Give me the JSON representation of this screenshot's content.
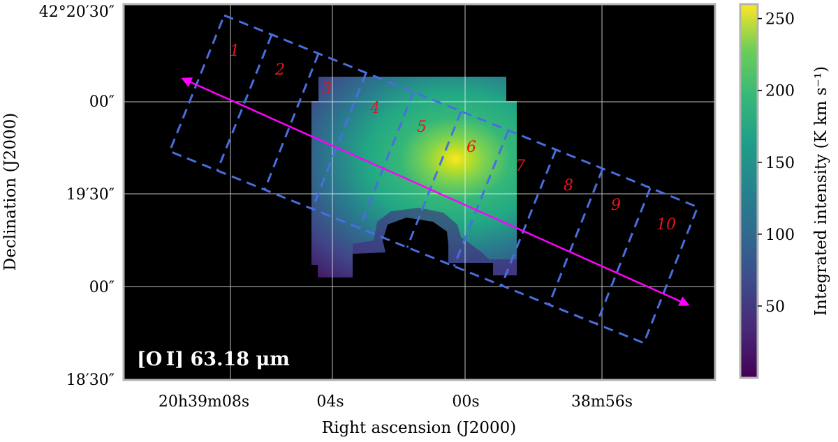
{
  "chart_data": {
    "type": "heatmap",
    "line_label": "[O I] 63.18 μm",
    "xlabel": "Right ascension (J2000)",
    "ylabel": "Declination (J2000)",
    "x_ticks": [
      {
        "label": "20h39m08s",
        "ra_s": 8
      },
      {
        "label": "04s",
        "ra_s": 4
      },
      {
        "label": "00s",
        "ra_s": 0
      },
      {
        "label": "38m56s",
        "ra_s": -4
      }
    ],
    "y_ticks": [
      {
        "label": "42°20′30″",
        "dec_arcsec": 30
      },
      {
        "label": "00″",
        "dec_arcsec": 0
      },
      {
        "label": "19′30″",
        "dec_arcsec": -30
      },
      {
        "label": "00″",
        "dec_arcsec": -60
      },
      {
        "label": "18′30″",
        "dec_arcsec": -90
      }
    ],
    "xlim_ra_s": [
      8.8,
      -9.6
    ],
    "ylim_dec_arcsec": [
      34,
      -90
    ],
    "colorbar": {
      "label": "Integrated intensity (K km s⁻¹)",
      "colormap": "viridis",
      "min": 0,
      "max": 260,
      "ticks": [
        50,
        100,
        150,
        200,
        250
      ]
    },
    "emission_peak": {
      "ra_s": -0.1,
      "dec_arcsec": -19,
      "value": 258
    },
    "regions": [
      {
        "label": "1"
      },
      {
        "label": "2"
      },
      {
        "label": "3"
      },
      {
        "label": "4"
      },
      {
        "label": "5"
      },
      {
        "label": "6"
      },
      {
        "label": "7"
      },
      {
        "label": "8"
      },
      {
        "label": "9"
      },
      {
        "label": "10"
      }
    ],
    "cut_line": {
      "color": "#ff00ff",
      "direction": "southeast",
      "double_headed": true
    },
    "colors": {
      "background": "#000000",
      "region_boxes": "#4a6ee0",
      "region_labels": "#e8141b",
      "grid": "#ffffff",
      "cut_line": "#ff00ff"
    }
  }
}
